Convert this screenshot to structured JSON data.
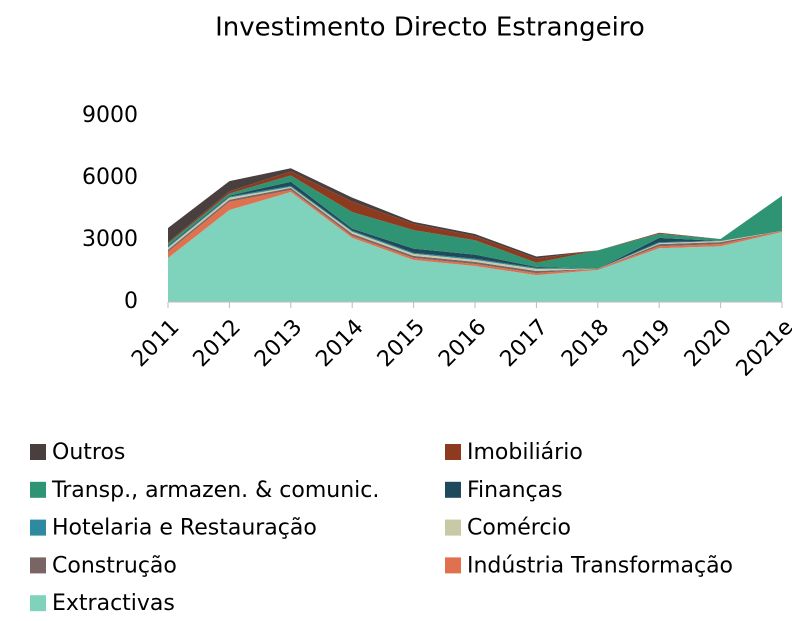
{
  "chart_data": {
    "type": "stacked_area",
    "title": "Investimento Directo Estrangeiro",
    "categories": [
      "2011",
      "2012",
      "2013",
      "2014",
      "2015",
      "2016",
      "2017",
      "2018",
      "2019",
      "2020",
      "2021e"
    ],
    "ylim": [
      0,
      9000
    ],
    "yticks": [
      0,
      3000,
      6000,
      9000
    ],
    "series": [
      {
        "name": "Extractivas",
        "color": "#7fd3bc",
        "values": [
          2130,
          4450,
          5320,
          3100,
          2030,
          1740,
          1300,
          1550,
          2600,
          2700,
          3390
        ]
      },
      {
        "name": "Indústria Transformação",
        "color": "#e0714f",
        "values": [
          300,
          400,
          100,
          100,
          100,
          100,
          100,
          50,
          100,
          100,
          50
        ]
      },
      {
        "name": "Construção",
        "color": "#7a6464",
        "values": [
          100,
          100,
          100,
          100,
          100,
          100,
          100,
          0,
          100,
          100,
          0
        ]
      },
      {
        "name": "Comércio",
        "color": "#c9c9a6",
        "values": [
          100,
          100,
          50,
          100,
          100,
          100,
          100,
          0,
          50,
          50,
          0
        ]
      },
      {
        "name": "Hotelaria e Restauração",
        "color": "#2e8a9e",
        "values": [
          50,
          50,
          50,
          50,
          50,
          50,
          50,
          0,
          50,
          0,
          0
        ]
      },
      {
        "name": "Finanças",
        "color": "#1f4a5c",
        "values": [
          50,
          50,
          200,
          100,
          200,
          200,
          50,
          0,
          200,
          0,
          0
        ]
      },
      {
        "name": "Transp., armazen. & comunic.",
        "color": "#2e9473",
        "values": [
          100,
          100,
          300,
          800,
          900,
          700,
          200,
          900,
          200,
          100,
          1700
        ]
      },
      {
        "name": "Imobiliário",
        "color": "#8e3a1f",
        "values": [
          50,
          100,
          200,
          500,
          300,
          200,
          200,
          0,
          50,
          0,
          0
        ]
      },
      {
        "name": "Outros",
        "color": "#4a3f3f",
        "values": [
          700,
          500,
          150,
          200,
          100,
          100,
          100,
          0,
          0,
          0,
          0
        ]
      }
    ],
    "legend_order": [
      8,
      7,
      6,
      5,
      4,
      3,
      2,
      1,
      0
    ]
  }
}
